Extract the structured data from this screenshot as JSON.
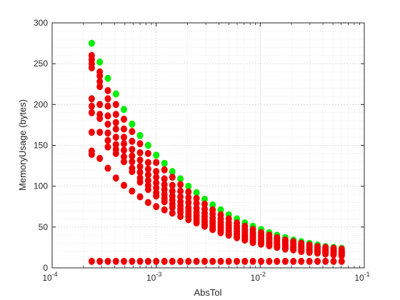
{
  "chart_data": {
    "type": "scatter",
    "title": "",
    "xlabel": "AbsTol",
    "ylabel": "MemoryUsage (bytes)",
    "x_scale": "log",
    "xlim": [
      0.0001,
      0.1
    ],
    "ylim": [
      0,
      300
    ],
    "x_ticks": [
      {
        "value": 0.0001,
        "base": "10",
        "exp": "-4"
      },
      {
        "value": 0.001,
        "base": "10",
        "exp": "-3"
      },
      {
        "value": 0.01,
        "base": "10",
        "exp": "-2"
      },
      {
        "value": 0.1,
        "base": "10",
        "exp": "-1"
      }
    ],
    "y_ticks": [
      0,
      50,
      100,
      150,
      200,
      250,
      300
    ],
    "grid": true,
    "minor_grid": true,
    "legend": "none",
    "x_values": [
      0.00024,
      0.000287,
      0.000343,
      0.00041,
      0.00049,
      0.000586,
      0.0007,
      0.000837,
      0.001,
      0.0012,
      0.00143,
      0.00171,
      0.00204,
      0.00244,
      0.00292,
      0.00349,
      0.00417,
      0.00498,
      0.00596,
      0.00712,
      0.00851,
      0.0102,
      0.0122,
      0.0145,
      0.0174,
      0.0208,
      0.0248,
      0.0297,
      0.0355,
      0.0424,
      0.0507,
      0.0606
    ],
    "series": [
      {
        "color": "#00ee00",
        "values": [
          275,
          252,
          232,
          213,
          194,
          176,
          162,
          150,
          138,
          128,
          118,
          109,
          100,
          92,
          84,
          77,
          71,
          65,
          60,
          55,
          51,
          47,
          43,
          40,
          37,
          34,
          32,
          30,
          28,
          26,
          25,
          24
        ]
      },
      {
        "color": "#ee0000",
        "values": [
          [
            260,
            255,
            250,
            245,
            207,
            198,
            190,
            166,
            143,
            139
          ],
          [
            240,
            235,
            228,
            222,
            200,
            188,
            183,
            166,
            134
          ],
          [
            217,
            207,
            198,
            186,
            176,
            165,
            156,
            148,
            122
          ],
          [
            200,
            188,
            178,
            170,
            160,
            151,
            145,
            140,
            110
          ],
          [
            182,
            170,
            160,
            152,
            144,
            136,
            130,
            101
          ],
          [
            167,
            155,
            145,
            137,
            130,
            122,
            118,
            94
          ],
          [
            152,
            141,
            132,
            124,
            117,
            110,
            105,
            87
          ],
          [
            140,
            129,
            121,
            114,
            107,
            101,
            96,
            80
          ],
          [
            129,
            118,
            111,
            104,
            98,
            92,
            88,
            75
          ],
          [
            120,
            109,
            102,
            96,
            90,
            85,
            81,
            71
          ],
          [
            111,
            101,
            94,
            88,
            83,
            78,
            74,
            67
          ],
          [
            102,
            94,
            87,
            81,
            76,
            72,
            68,
            63
          ],
          [
            93,
            86,
            80,
            74,
            70,
            66,
            63,
            59
          ],
          [
            85,
            79,
            73,
            68,
            64,
            61,
            58,
            55
          ],
          [
            78,
            72,
            67,
            63,
            59,
            56,
            53,
            51
          ],
          [
            71,
            66,
            61,
            57,
            54,
            51,
            48,
            47
          ],
          [
            65,
            60,
            56,
            53,
            50,
            47,
            45,
            43
          ],
          [
            60,
            55,
            52,
            49,
            46,
            43,
            41,
            40
          ],
          [
            55,
            51,
            48,
            45,
            42,
            40,
            38,
            37
          ],
          [
            51,
            47,
            44,
            41,
            39,
            37,
            35,
            34
          ],
          [
            47,
            43,
            41,
            38,
            36,
            34,
            32,
            31
          ],
          [
            43,
            40,
            38,
            35,
            33,
            31,
            30,
            29
          ],
          [
            40,
            37,
            35,
            33,
            31,
            29,
            28,
            27
          ],
          [
            37,
            35,
            33,
            31,
            29,
            27,
            26,
            25
          ],
          [
            34,
            32,
            30,
            28,
            27,
            25,
            24,
            23
          ],
          [
            32,
            30,
            28,
            26,
            25,
            24,
            23,
            22
          ],
          [
            30,
            28,
            26,
            25,
            23,
            22,
            21,
            20
          ],
          [
            28,
            26,
            25,
            23,
            22,
            21,
            20,
            19
          ],
          [
            26,
            24,
            23,
            22,
            21,
            20,
            19,
            18
          ],
          [
            25,
            23,
            22,
            21,
            20,
            19,
            18,
            17
          ],
          [
            24,
            22,
            21,
            20,
            19,
            18,
            17,
            16
          ],
          [
            23,
            21,
            20,
            19,
            18,
            17,
            16,
            15
          ]
        ]
      },
      {
        "color": "#ee0000",
        "values": [
          8,
          8,
          8,
          8,
          8,
          8,
          8,
          8,
          8,
          8,
          8,
          8,
          8,
          8,
          8,
          8,
          8,
          8,
          8,
          8,
          8,
          8,
          8,
          8,
          8,
          8,
          8,
          8,
          8,
          8,
          8,
          8
        ]
      }
    ]
  }
}
